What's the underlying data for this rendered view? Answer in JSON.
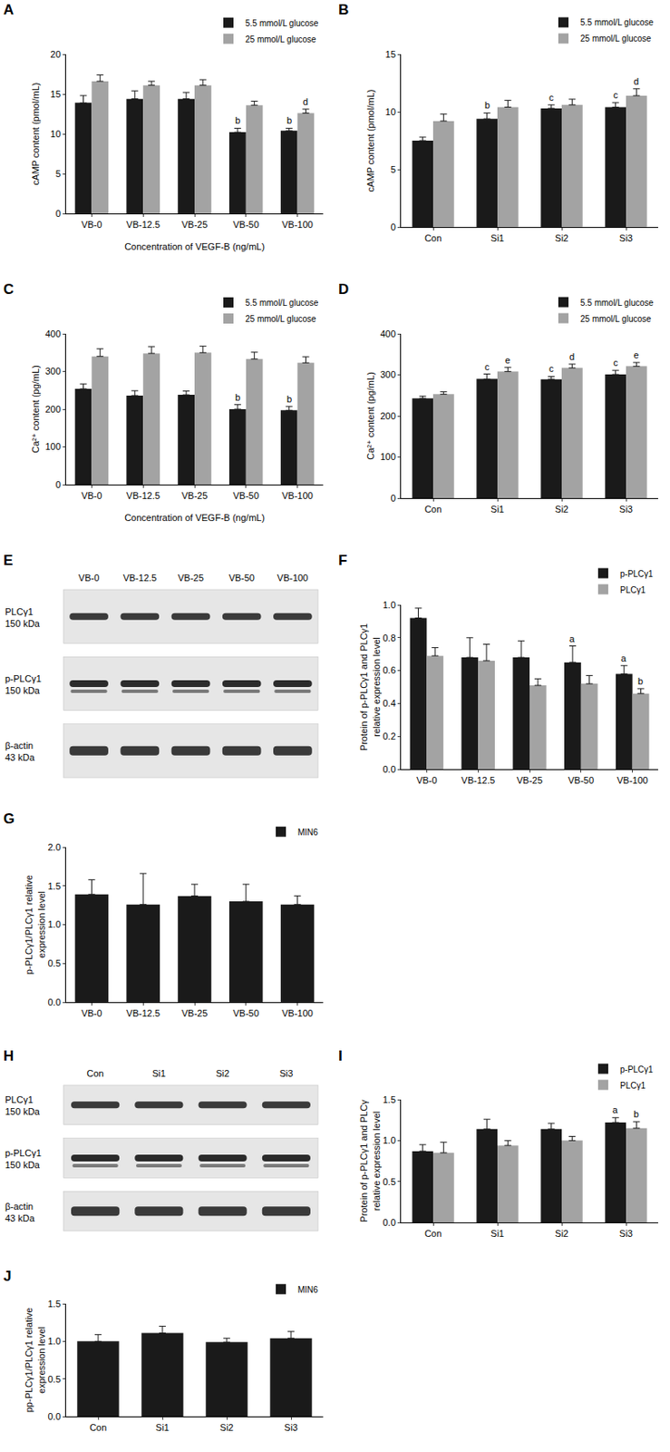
{
  "chart_data": [
    {
      "title": "A",
      "type": "bar",
      "categories": [
        "VB-0",
        "VB-12.5",
        "VB-25",
        "VB-50",
        "VB-100"
      ],
      "x_label": "Concentration of VEGF-B (ng/mL)",
      "y_label": "cAMP content (pmol/mL)",
      "ylim": [
        0,
        20
      ],
      "yticks": [
        0,
        5,
        10,
        15,
        20
      ],
      "legend": "top right",
      "series": [
        {
          "name": "5.5 mmol/L glucose",
          "color": "#1a1a1a",
          "values": [
            13.9,
            14.4,
            14.4,
            10.2,
            10.4
          ],
          "error": [
            0.9,
            1.0,
            0.8,
            0.5,
            0.3
          ],
          "annotations": [
            null,
            null,
            null,
            "b",
            "b"
          ]
        },
        {
          "name": "25 mmol/L glucose",
          "color": "#a3a3a3",
          "values": [
            16.6,
            16.1,
            16.1,
            13.6,
            12.6
          ],
          "error": [
            0.8,
            0.5,
            0.7,
            0.5,
            0.5
          ],
          "annotations": [
            null,
            null,
            null,
            null,
            "d"
          ]
        }
      ]
    },
    {
      "title": "B",
      "type": "bar",
      "categories": [
        "Con",
        "Si1",
        "Si2",
        "Si3"
      ],
      "y_label": "cAMP content (pmol/mL)",
      "ylim": [
        0,
        15
      ],
      "yticks": [
        0,
        5,
        10,
        15
      ],
      "legend": "top right",
      "series": [
        {
          "name": "5.5 mmol/L glucose",
          "color": "#1a1a1a",
          "values": [
            7.5,
            9.4,
            10.3,
            10.4
          ],
          "error": [
            0.3,
            0.5,
            0.3,
            0.4
          ],
          "annotations": [
            null,
            "b",
            "c",
            "c"
          ]
        },
        {
          "name": "25 mmol/L glucose",
          "color": "#a3a3a3",
          "values": [
            9.2,
            10.4,
            10.6,
            11.4
          ],
          "error": [
            0.6,
            0.6,
            0.5,
            0.6
          ],
          "annotations": [
            null,
            null,
            null,
            "d"
          ]
        }
      ]
    },
    {
      "title": "C",
      "type": "bar",
      "categories": [
        "VB-0",
        "VB-12.5",
        "VB-25",
        "VB-50",
        "VB-100"
      ],
      "x_label": "Concentration of VEGF-B (ng/mL)",
      "y_label": "Ca²⁺ content (pg/mL)",
      "ylim": [
        0,
        400
      ],
      "yticks": [
        0,
        100,
        200,
        300,
        400
      ],
      "legend": "top right",
      "series": [
        {
          "name": "5.5 mmol/L glucose",
          "color": "#1a1a1a",
          "values": [
            254,
            236,
            238,
            200,
            197
          ],
          "error": [
            13,
            13,
            10,
            12,
            10
          ],
          "annotations": [
            null,
            null,
            null,
            "b",
            "b"
          ]
        },
        {
          "name": "25 mmol/L glucose",
          "color": "#a3a3a3",
          "values": [
            340,
            348,
            350,
            333,
            323
          ],
          "error": [
            20,
            18,
            17,
            18,
            16
          ],
          "annotations": [
            null,
            null,
            null,
            null,
            null
          ]
        }
      ]
    },
    {
      "title": "D",
      "type": "bar",
      "categories": [
        "Con",
        "Si1",
        "Si2",
        "Si3"
      ],
      "y_label": "Ca²⁺ content (pg/mL)",
      "ylim": [
        0,
        400
      ],
      "yticks": [
        0,
        100,
        200,
        300,
        400
      ],
      "legend": "top right",
      "series": [
        {
          "name": "5.5 mmol/L glucose",
          "color": "#1a1a1a",
          "values": [
            243,
            290,
            289,
            301
          ],
          "error": [
            5,
            12,
            7,
            10
          ],
          "annotations": [
            null,
            "c",
            "c",
            "c"
          ]
        },
        {
          "name": "25 mmol/L glucose",
          "color": "#a3a3a3",
          "values": [
            253,
            308,
            317,
            321
          ],
          "error": [
            6,
            10,
            9,
            9
          ],
          "annotations": [
            null,
            "e",
            "d",
            "e"
          ]
        }
      ]
    },
    {
      "title": "F",
      "type": "bar",
      "categories": [
        "VB-0",
        "VB-12.5",
        "VB-25",
        "VB-50",
        "VB-100"
      ],
      "y_label": "Protein of p-PLCγ1 and PLCγ1 relative expression level",
      "ylim": [
        0,
        1.0
      ],
      "yticks": [
        {
          "value": 0,
          "label": "0.0"
        },
        0.2,
        0.4,
        0.6,
        0.8,
        {
          "value": 1,
          "label": "1.0"
        }
      ],
      "legend": "top right",
      "series": [
        {
          "name": "p-PLCγ1",
          "color": "#1a1a1a",
          "values": [
            0.92,
            0.68,
            0.68,
            0.65,
            0.58
          ],
          "error": [
            0.06,
            0.12,
            0.1,
            0.1,
            0.05
          ],
          "annotations": [
            null,
            null,
            null,
            "a",
            "a"
          ]
        },
        {
          "name": "PLCγ1",
          "color": "#a3a3a3",
          "values": [
            0.69,
            0.66,
            0.51,
            0.52,
            0.46
          ],
          "error": [
            0.05,
            0.1,
            0.04,
            0.05,
            0.03
          ],
          "annotations": [
            null,
            null,
            null,
            null,
            "b"
          ]
        }
      ]
    },
    {
      "title": "G",
      "type": "bar",
      "categories": [
        "VB-0",
        "VB-12.5",
        "VB-25",
        "VB-50",
        "VB-100"
      ],
      "y_label": "p-PLCγ1/PLCγ1 relative expression level",
      "ylim": [
        0,
        2.0
      ],
      "yticks": [
        {
          "value": 0,
          "label": "0.0"
        },
        0.5,
        {
          "value": 1,
          "label": "1.0"
        },
        1.5,
        {
          "value": 2,
          "label": "2.0"
        }
      ],
      "legend": "top right",
      "series": [
        {
          "name": "MIN6",
          "color": "#1a1a1a",
          "values": [
            1.39,
            1.26,
            1.37,
            1.3,
            1.26
          ],
          "error": [
            0.19,
            0.4,
            0.15,
            0.22,
            0.11
          ],
          "annotations": [
            null,
            null,
            null,
            null,
            null
          ]
        }
      ]
    },
    {
      "title": "I",
      "type": "bar",
      "categories": [
        "Con",
        "Si1",
        "Si2",
        "Si3"
      ],
      "y_label": "Protein of p-PLCγ1 and PLCγ relative expression level",
      "ylim": [
        0,
        1.5
      ],
      "yticks": [
        {
          "value": 0,
          "label": "0.0"
        },
        0.5,
        {
          "value": 1,
          "label": "1.0"
        },
        1.5
      ],
      "legend": "top right",
      "series": [
        {
          "name": "p-PLCγ1",
          "color": "#1a1a1a",
          "values": [
            0.87,
            1.14,
            1.14,
            1.22
          ],
          "error": [
            0.08,
            0.12,
            0.07,
            0.06
          ],
          "annotations": [
            null,
            null,
            null,
            "a"
          ]
        },
        {
          "name": "PLCγ1",
          "color": "#a3a3a3",
          "values": [
            0.85,
            0.94,
            1.0,
            1.15
          ],
          "error": [
            0.13,
            0.06,
            0.05,
            0.08
          ],
          "annotations": [
            null,
            null,
            null,
            "b"
          ]
        }
      ]
    },
    {
      "title": "J",
      "type": "bar",
      "categories": [
        "Con",
        "Si1",
        "Si2",
        "Si3"
      ],
      "y_label": "pp-PLCγ1/PLCγ1 relative expression level",
      "ylim": [
        0,
        1.5
      ],
      "yticks": [
        {
          "value": 0,
          "label": "0.0"
        },
        0.5,
        {
          "value": 1,
          "label": "1.0"
        },
        1.5
      ],
      "legend": "top right",
      "series": [
        {
          "name": "MIN6",
          "color": "#1a1a1a",
          "values": [
            1.0,
            1.11,
            0.99,
            1.04
          ],
          "error": [
            0.09,
            0.09,
            0.05,
            0.09
          ],
          "annotations": [
            null,
            null,
            null,
            null
          ]
        }
      ]
    }
  ],
  "blots": [
    {
      "title": "E",
      "lanes": [
        "VB-0",
        "VB-12.5",
        "VB-25",
        "VB-50",
        "VB-100"
      ],
      "rows": [
        {
          "protein": "PLCγ1",
          "size": "150 kDa"
        },
        {
          "protein": "p-PLCγ1",
          "size": "150 kDa"
        },
        {
          "protein": "β-actin",
          "size": "43 kDa"
        }
      ]
    },
    {
      "title": "H",
      "lanes": [
        "Con",
        "Si1",
        "Si2",
        "Si3"
      ],
      "rows": [
        {
          "protein": "PLCγ1",
          "size": "150 kDa"
        },
        {
          "protein": "p-PLCγ1",
          "size": "150 kDa"
        },
        {
          "protein": "β-actin",
          "size": "43 kDa"
        }
      ]
    }
  ]
}
